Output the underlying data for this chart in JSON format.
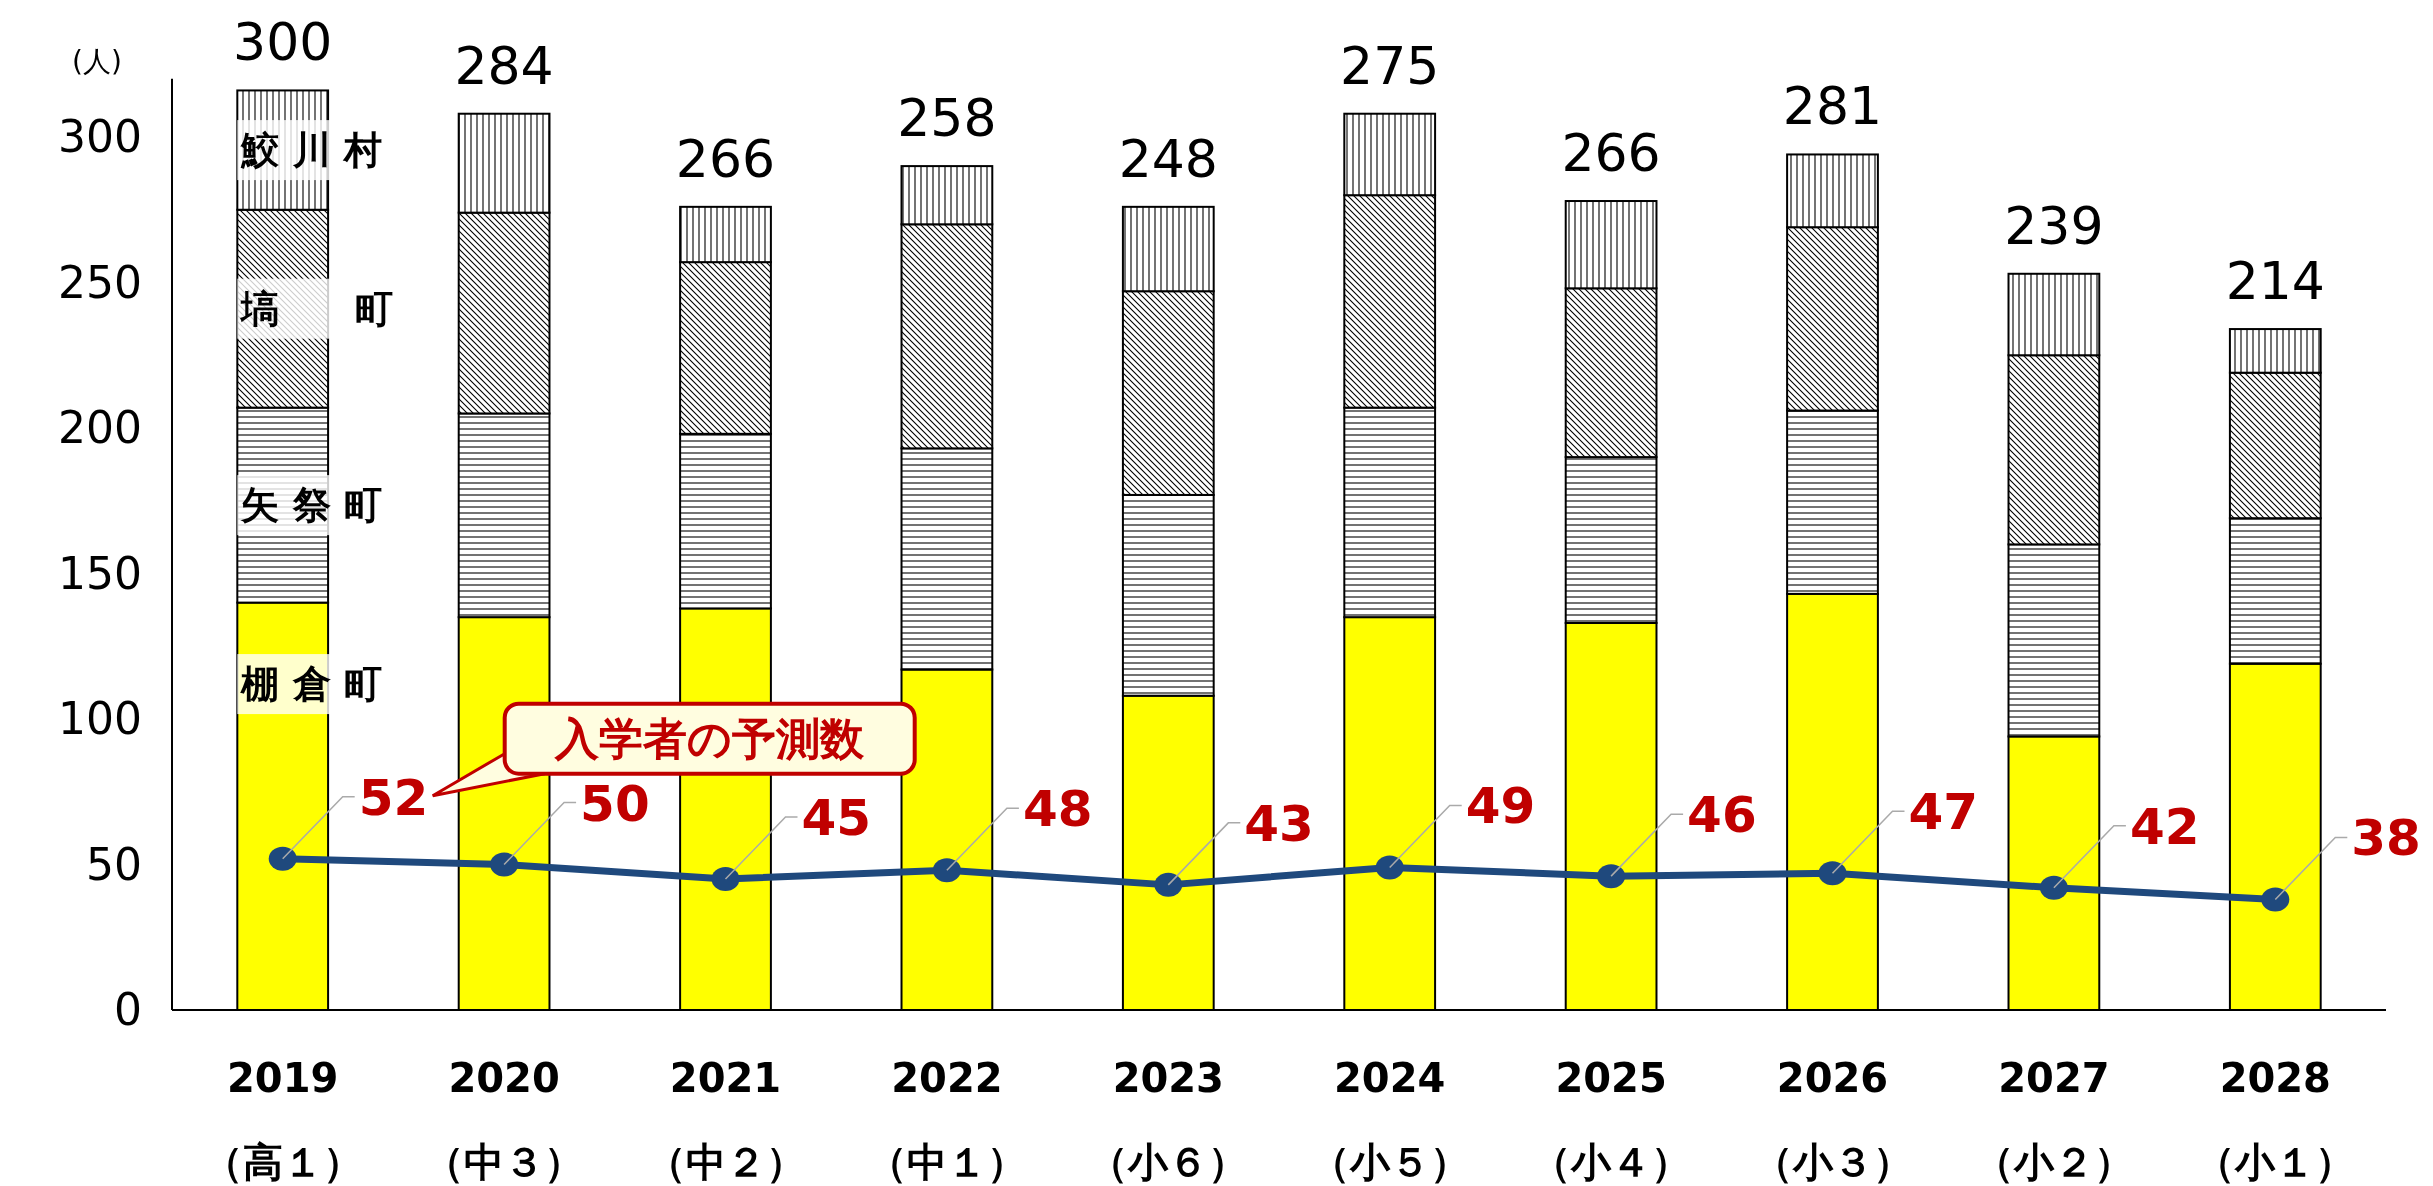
{
  "chart_data": {
    "type": "bar",
    "stacked": true,
    "ylabel": "(人)",
    "marker": "circle",
    "categories": [
      "2019\n（高１）",
      "2020\n（中３）",
      "2021\n（中２）",
      "2022\n（中１）",
      "2023\n（小６）",
      "2024\n（小５）",
      "2025\n（小４）",
      "2026\n（小３）",
      "2027\n（小２）",
      "2028\n（小１）"
    ],
    "ylim": [
      0,
      320
    ],
    "yticks": [
      0,
      50,
      100,
      150,
      200,
      250,
      300
    ],
    "annotations": [
      {
        "text": "300",
        "x": "2019\n（高１）",
        "y": 316
      },
      {
        "text": "284",
        "x": "2020\n（中３）",
        "y": 308
      },
      {
        "text": "266",
        "x": "2021\n（中２）",
        "y": 276
      },
      {
        "text": "258",
        "x": "2022\n（中１）",
        "y": 290
      },
      {
        "text": "248",
        "x": "2023\n（小６）",
        "y": 276
      },
      {
        "text": "275",
        "x": "2024\n（小５）",
        "y": 308
      },
      {
        "text": "266",
        "x": "2025\n（小４）",
        "y": 278
      },
      {
        "text": "281",
        "x": "2026\n（小３）",
        "y": 294
      },
      {
        "text": "239",
        "x": "2027\n（小２）",
        "y": 253
      },
      {
        "text": "214",
        "x": "2028\n（小１）",
        "y": 234
      }
    ],
    "series": [
      {
        "name": "棚 倉 町",
        "color": "#ffff00",
        "values": [
          140,
          135,
          138,
          117,
          108,
          135,
          133,
          143,
          94,
          119
        ]
      },
      {
        "name": "矢 祭 町",
        "color": "#000000",
        "values": [
          67,
          70,
          60,
          76,
          69,
          72,
          57,
          63,
          66,
          50
        ]
      },
      {
        "name": "塙　　町",
        "color": "#000000",
        "values": [
          68,
          69,
          59,
          77,
          70,
          73,
          58,
          63,
          65,
          50
        ]
      },
      {
        "name": "鮫 川 村",
        "color": "#000000",
        "values": [
          41,
          34,
          19,
          20,
          29,
          28,
          30,
          25,
          28,
          15
        ]
      },
      {
        "name": "入学者の予測数",
        "type": "line",
        "color": "#1f497d",
        "values": [
          52,
          50,
          45,
          48,
          43,
          49,
          46,
          47,
          42,
          38
        ],
        "value_labels": [
          "52",
          "50",
          "45",
          "48",
          "43",
          "49",
          "46",
          "47",
          "42",
          "38"
        ]
      }
    ]
  }
}
